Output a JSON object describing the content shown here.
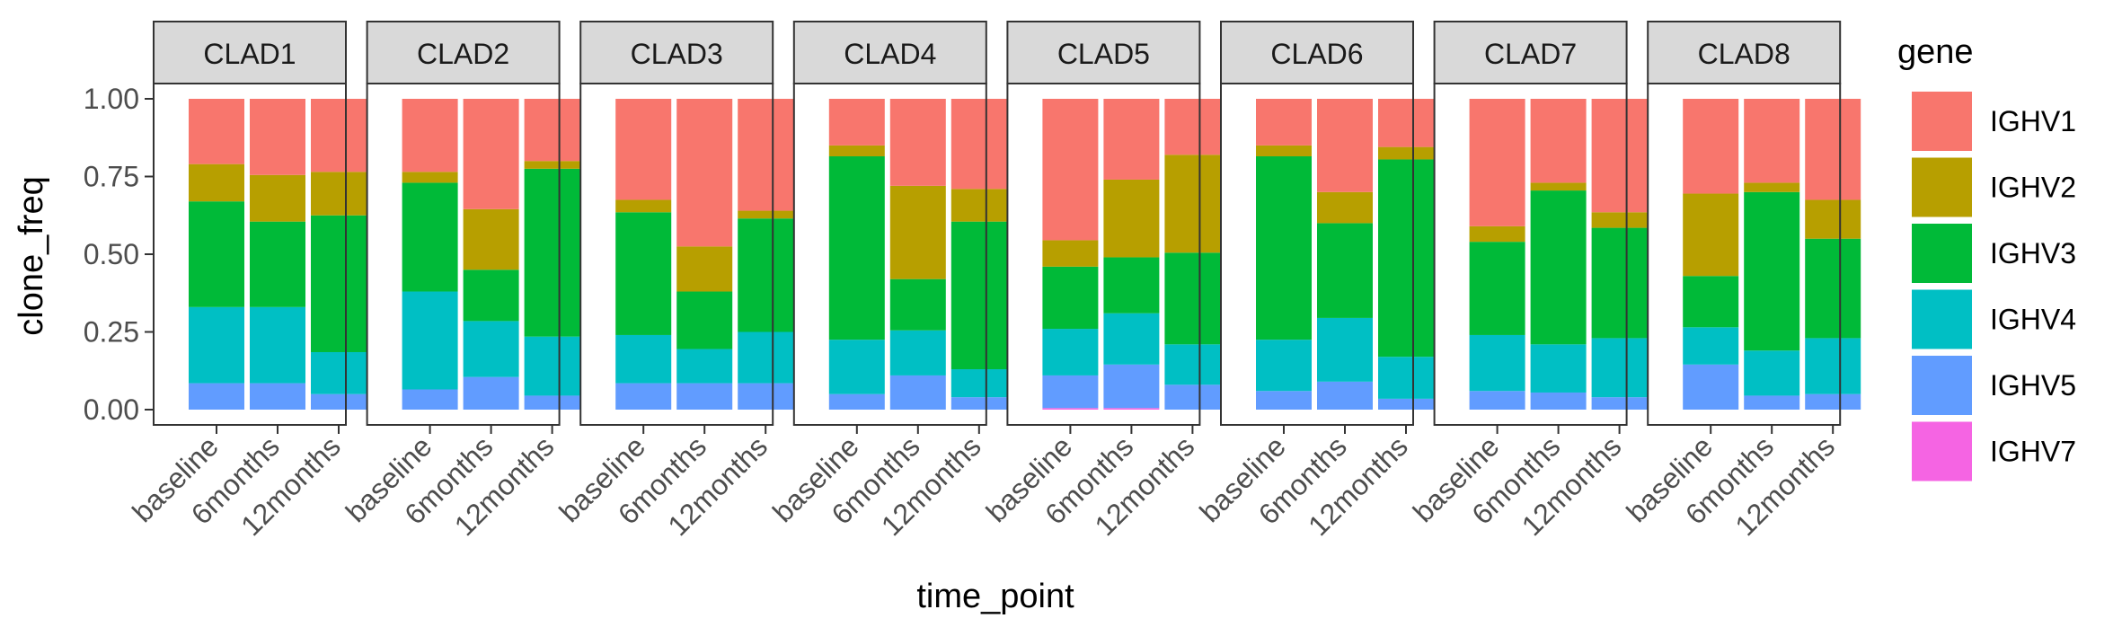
{
  "chart_data": {
    "type": "bar",
    "subtype": "stacked-100-percent-faceted",
    "xlabel": "time_point",
    "ylabel": "clone_freq",
    "ylim": [
      0,
      1
    ],
    "y_ticks": [
      "0.00",
      "0.25",
      "0.50",
      "0.75",
      "1.00"
    ],
    "categories": [
      "baseline",
      "6months",
      "12months"
    ],
    "legend": {
      "title": "gene",
      "position": "right",
      "entries": [
        {
          "name": "IGHV1",
          "color": "#F8766D"
        },
        {
          "name": "IGHV2",
          "color": "#B79F00"
        },
        {
          "name": "IGHV3",
          "color": "#00BA38"
        },
        {
          "name": "IGHV4",
          "color": "#00BFC4"
        },
        {
          "name": "IGHV5",
          "color": "#619CFF"
        },
        {
          "name": "IGHV7",
          "color": "#F564E3"
        }
      ]
    },
    "stack_order_bottom_to_top": [
      "IGHV7",
      "IGHV5",
      "IGHV4",
      "IGHV3",
      "IGHV2",
      "IGHV1"
    ],
    "facets": [
      {
        "name": "CLAD1",
        "bars": [
          {
            "category": "baseline",
            "values": {
              "IGHV7": 0.0,
              "IGHV5": 0.085,
              "IGHV4": 0.245,
              "IGHV3": 0.34,
              "IGHV2": 0.12,
              "IGHV1": 0.21
            }
          },
          {
            "category": "6months",
            "values": {
              "IGHV7": 0.0,
              "IGHV5": 0.085,
              "IGHV4": 0.245,
              "IGHV3": 0.275,
              "IGHV2": 0.15,
              "IGHV1": 0.245
            }
          },
          {
            "category": "12months",
            "values": {
              "IGHV7": 0.0,
              "IGHV5": 0.05,
              "IGHV4": 0.135,
              "IGHV3": 0.44,
              "IGHV2": 0.14,
              "IGHV1": 0.235
            }
          }
        ]
      },
      {
        "name": "CLAD2",
        "bars": [
          {
            "category": "baseline",
            "values": {
              "IGHV7": 0.0,
              "IGHV5": 0.065,
              "IGHV4": 0.315,
              "IGHV3": 0.35,
              "IGHV2": 0.035,
              "IGHV1": 0.235
            }
          },
          {
            "category": "6months",
            "values": {
              "IGHV7": 0.0,
              "IGHV5": 0.105,
              "IGHV4": 0.18,
              "IGHV3": 0.165,
              "IGHV2": 0.195,
              "IGHV1": 0.355
            }
          },
          {
            "category": "12months",
            "values": {
              "IGHV7": 0.0,
              "IGHV5": 0.045,
              "IGHV4": 0.19,
              "IGHV3": 0.54,
              "IGHV2": 0.025,
              "IGHV1": 0.2
            }
          }
        ]
      },
      {
        "name": "CLAD3",
        "bars": [
          {
            "category": "baseline",
            "values": {
              "IGHV7": 0.0,
              "IGHV5": 0.085,
              "IGHV4": 0.155,
              "IGHV3": 0.395,
              "IGHV2": 0.04,
              "IGHV1": 0.325
            }
          },
          {
            "category": "6months",
            "values": {
              "IGHV7": 0.0,
              "IGHV5": 0.085,
              "IGHV4": 0.11,
              "IGHV3": 0.185,
              "IGHV2": 0.145,
              "IGHV1": 0.475
            }
          },
          {
            "category": "12months",
            "values": {
              "IGHV7": 0.0,
              "IGHV5": 0.085,
              "IGHV4": 0.165,
              "IGHV3": 0.365,
              "IGHV2": 0.025,
              "IGHV1": 0.36
            }
          }
        ]
      },
      {
        "name": "CLAD4",
        "bars": [
          {
            "category": "baseline",
            "values": {
              "IGHV7": 0.0,
              "IGHV5": 0.05,
              "IGHV4": 0.175,
              "IGHV3": 0.59,
              "IGHV2": 0.035,
              "IGHV1": 0.15
            }
          },
          {
            "category": "6months",
            "values": {
              "IGHV7": 0.0,
              "IGHV5": 0.11,
              "IGHV4": 0.145,
              "IGHV3": 0.165,
              "IGHV2": 0.3,
              "IGHV1": 0.28
            }
          },
          {
            "category": "12months",
            "values": {
              "IGHV7": 0.0,
              "IGHV5": 0.04,
              "IGHV4": 0.09,
              "IGHV3": 0.475,
              "IGHV2": 0.105,
              "IGHV1": 0.29
            }
          }
        ]
      },
      {
        "name": "CLAD5",
        "bars": [
          {
            "category": "baseline",
            "values": {
              "IGHV7": 0.005,
              "IGHV5": 0.105,
              "IGHV4": 0.15,
              "IGHV3": 0.2,
              "IGHV2": 0.085,
              "IGHV1": 0.455
            }
          },
          {
            "category": "6months",
            "values": {
              "IGHV7": 0.005,
              "IGHV5": 0.14,
              "IGHV4": 0.165,
              "IGHV3": 0.18,
              "IGHV2": 0.25,
              "IGHV1": 0.26
            }
          },
          {
            "category": "12months",
            "values": {
              "IGHV7": 0.0,
              "IGHV5": 0.08,
              "IGHV4": 0.13,
              "IGHV3": 0.295,
              "IGHV2": 0.315,
              "IGHV1": 0.18
            }
          }
        ]
      },
      {
        "name": "CLAD6",
        "bars": [
          {
            "category": "baseline",
            "values": {
              "IGHV7": 0.0,
              "IGHV5": 0.06,
              "IGHV4": 0.165,
              "IGHV3": 0.59,
              "IGHV2": 0.035,
              "IGHV1": 0.15
            }
          },
          {
            "category": "6months",
            "values": {
              "IGHV7": 0.0,
              "IGHV5": 0.09,
              "IGHV4": 0.205,
              "IGHV3": 0.305,
              "IGHV2": 0.1,
              "IGHV1": 0.3
            }
          },
          {
            "category": "12months",
            "values": {
              "IGHV7": 0.0,
              "IGHV5": 0.035,
              "IGHV4": 0.135,
              "IGHV3": 0.635,
              "IGHV2": 0.04,
              "IGHV1": 0.155
            }
          }
        ]
      },
      {
        "name": "CLAD7",
        "bars": [
          {
            "category": "baseline",
            "values": {
              "IGHV7": 0.0,
              "IGHV5": 0.06,
              "IGHV4": 0.18,
              "IGHV3": 0.3,
              "IGHV2": 0.05,
              "IGHV1": 0.41
            }
          },
          {
            "category": "6months",
            "values": {
              "IGHV7": 0.0,
              "IGHV5": 0.055,
              "IGHV4": 0.155,
              "IGHV3": 0.495,
              "IGHV2": 0.025,
              "IGHV1": 0.27
            }
          },
          {
            "category": "12months",
            "values": {
              "IGHV7": 0.0,
              "IGHV5": 0.04,
              "IGHV4": 0.19,
              "IGHV3": 0.355,
              "IGHV2": 0.05,
              "IGHV1": 0.365
            }
          }
        ]
      },
      {
        "name": "CLAD8",
        "bars": [
          {
            "category": "baseline",
            "values": {
              "IGHV7": 0.0,
              "IGHV5": 0.145,
              "IGHV4": 0.12,
              "IGHV3": 0.165,
              "IGHV2": 0.265,
              "IGHV1": 0.305
            }
          },
          {
            "category": "6months",
            "values": {
              "IGHV7": 0.0,
              "IGHV5": 0.045,
              "IGHV4": 0.145,
              "IGHV3": 0.51,
              "IGHV2": 0.03,
              "IGHV1": 0.27
            }
          },
          {
            "category": "12months",
            "values": {
              "IGHV7": 0.0,
              "IGHV5": 0.05,
              "IGHV4": 0.18,
              "IGHV3": 0.32,
              "IGHV2": 0.125,
              "IGHV1": 0.325
            }
          }
        ]
      }
    ]
  }
}
